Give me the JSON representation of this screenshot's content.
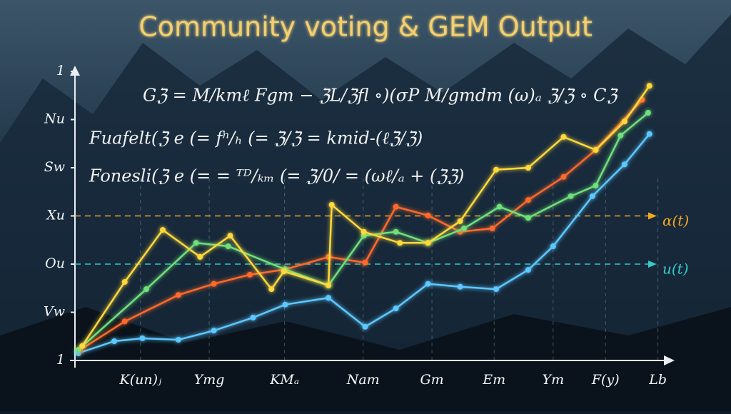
{
  "chart_data": {
    "type": "line",
    "title": "Community voting & GEM Output",
    "annotations": [
      "Gℨ = M/kmℓ  Fgm − ℨL/ℨfl  ∘)(σP  M/gmdm  (ω)ₐ ℨ/ℨ ∘ Cℨ",
      "Fuafelt(ℨ e (= fⁿ/ₕ (= ℨ/ℨ = kmid-(ℓℨ/ℨ)",
      "Fonesli(ℨ e (= = ᵀᴰ/ₖₘ (= ℨ/0/ = (ωℓ/ₐ + (ℨℨ)"
    ],
    "xlim": [
      0,
      9.1
    ],
    "ylim": [
      0,
      6
    ],
    "xticks": [
      {
        "value": 1,
        "label": "K(un)ⱼ"
      },
      {
        "value": 2.05,
        "label": "Ymg"
      },
      {
        "value": 3.2,
        "label": "KMₐ"
      },
      {
        "value": 4.4,
        "label": "Nam"
      },
      {
        "value": 5.45,
        "label": "Gm"
      },
      {
        "value": 6.4,
        "label": "Em"
      },
      {
        "value": 7.3,
        "label": "Ym"
      },
      {
        "value": 8.1,
        "label": "F(y)"
      },
      {
        "value": 8.9,
        "label": "Lb"
      }
    ],
    "yticks": [
      {
        "value": 0,
        "label": "1"
      },
      {
        "value": 1,
        "label": "Vw"
      },
      {
        "value": 2,
        "label": "Ou"
      },
      {
        "value": 3,
        "label": "Xu"
      },
      {
        "value": 4,
        "label": "Sw"
      },
      {
        "value": 5,
        "label": "Nu"
      },
      {
        "value": 6,
        "label": "1"
      }
    ],
    "grid": true,
    "reference_lines": [
      {
        "value": 3,
        "label": "ɑ(t)",
        "color": "#f5a623"
      },
      {
        "value": 2,
        "label": "u(t)",
        "color": "#35c9c9"
      }
    ],
    "series": [
      {
        "color": "#5cc8ff",
        "x": [
          0.05,
          0.6,
          1.03,
          1.58,
          2.12,
          2.72,
          3.21,
          3.87,
          4.43,
          4.9,
          5.39,
          5.88,
          6.43,
          6.92,
          7.3,
          7.9,
          8.39,
          8.77
        ],
        "values": [
          0.15,
          0.4,
          0.46,
          0.43,
          0.62,
          0.89,
          1.16,
          1.3,
          0.7,
          1.08,
          1.59,
          1.53,
          1.48,
          1.88,
          2.37,
          3.41,
          4.07,
          4.7
        ]
      },
      {
        "color": "#ff6a2a",
        "x": [
          0.08,
          0.76,
          1.58,
          2.12,
          2.67,
          3.21,
          3.87,
          4.43,
          4.9,
          5.39,
          5.88,
          6.37,
          6.92,
          7.46,
          7.95,
          8.66
        ],
        "values": [
          0.22,
          0.81,
          1.36,
          1.59,
          1.78,
          1.89,
          2.15,
          2.03,
          3.19,
          3.01,
          2.67,
          2.74,
          3.33,
          3.81,
          4.37,
          5.41
        ]
      },
      {
        "color": "#6fe07a",
        "x": [
          0.05,
          1.09,
          1.85,
          2.34,
          3.21,
          3.87,
          4.41,
          4.9,
          5.39,
          5.94,
          6.48,
          6.92,
          7.57,
          7.95,
          8.33,
          8.75
        ],
        "values": [
          0.22,
          1.48,
          2.44,
          2.37,
          1.89,
          1.56,
          2.59,
          2.67,
          2.44,
          2.74,
          3.19,
          2.96,
          3.41,
          3.63,
          4.67,
          5.14
        ]
      },
      {
        "color": "#ffd83a",
        "x": [
          0.11,
          0.76,
          1.34,
          1.91,
          2.37,
          3.0,
          3.19,
          3.87,
          3.92,
          4.41,
          4.96,
          5.39,
          5.88,
          6.43,
          6.92,
          7.46,
          7.95,
          8.39,
          8.77
        ],
        "values": [
          0.3,
          1.63,
          2.71,
          2.15,
          2.59,
          1.48,
          1.85,
          1.56,
          3.23,
          2.67,
          2.44,
          2.44,
          2.89,
          3.96,
          4.0,
          4.64,
          4.37,
          4.96,
          5.7
        ]
      }
    ]
  }
}
